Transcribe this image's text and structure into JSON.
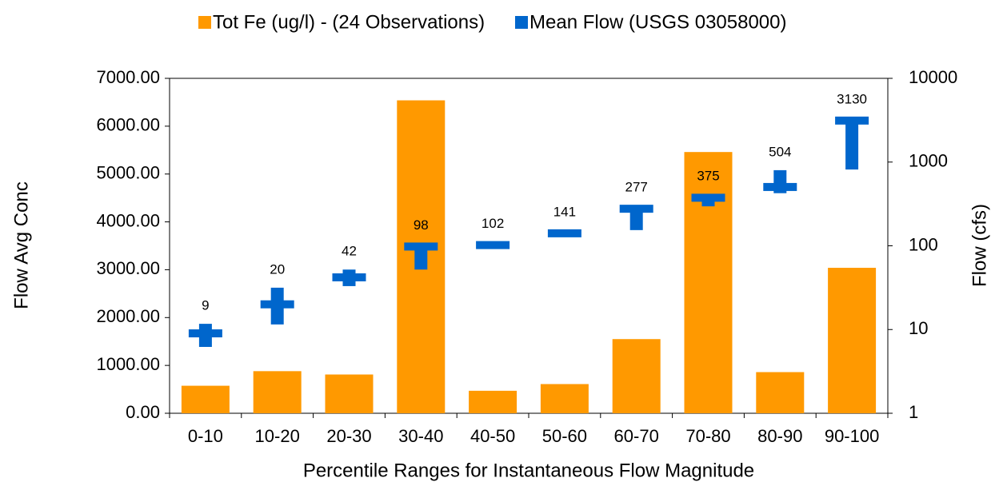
{
  "chart_data": {
    "type": "bar",
    "xlabel": "Percentile Ranges for Instantaneous Flow Magnitude",
    "ylabel": "Flow Avg Conc",
    "y2label": "Flow (cfs)",
    "categories": [
      "0-10",
      "10-20",
      "20-30",
      "30-40",
      "40-50",
      "50-60",
      "60-70",
      "70-80",
      "80-90",
      "90-100"
    ],
    "series": [
      {
        "name": "Tot Fe (ug/l) - (24 Observations)",
        "color": "#ff9900",
        "values": [
          575,
          880,
          810,
          6540,
          470,
          610,
          1550,
          5460,
          860,
          3040
        ]
      },
      {
        "name": "Mean Flow (USGS 03058000)",
        "color": "#0066cc",
        "axis": "y2",
        "values": [
          9,
          20,
          42,
          98,
          102,
          141,
          277,
          375,
          504,
          3130
        ],
        "low": [
          6.2,
          11.5,
          33,
          52,
          null,
          null,
          154,
          296,
          425,
          815
        ],
        "high": [
          11.7,
          31.6,
          52,
          101,
          null,
          null,
          282,
          414,
          800,
          3200
        ]
      }
    ],
    "ylim": [
      0,
      7000
    ],
    "yticks": [
      {
        "value": 0,
        "label": "0.00"
      },
      {
        "value": 1000,
        "label": "1000.00"
      },
      {
        "value": 2000,
        "label": "2000.00"
      },
      {
        "value": 3000,
        "label": "3000.00"
      },
      {
        "value": 4000,
        "label": "4000.00"
      },
      {
        "value": 5000,
        "label": "5000.00"
      },
      {
        "value": 6000,
        "label": "6000.00"
      },
      {
        "value": 7000,
        "label": "7000.00"
      }
    ],
    "y2lim": [
      1,
      10000
    ],
    "y2ticks": [
      1,
      10,
      100,
      1000,
      10000
    ],
    "y2log": true
  }
}
